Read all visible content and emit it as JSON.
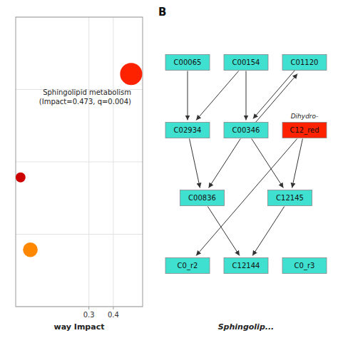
{
  "chart_data": [
    {
      "type": "scatter",
      "x": [
        0.473,
        0.02,
        0.06
      ],
      "y": [
        2.55,
        1.55,
        0.85
      ],
      "sizes": [
        500,
        100,
        220
      ],
      "colors": [
        "#FF2200",
        "#CC0000",
        "#FF8800"
      ],
      "xlim": [
        0.0,
        0.52
      ],
      "ylim": [
        0.3,
        3.1
      ],
      "xticks": [
        0.3,
        0.4
      ],
      "yticks": [
        0.3,
        1.0,
        1.7,
        2.4,
        3.1
      ],
      "xlabel": "way Impact",
      "grid": true,
      "tick_labels": "x",
      "annotations": [
        {
          "text": "Sphingolipid metabolism\n(Impact=0.473, q=0.004)",
          "x": 0.473,
          "y": 2.55
        }
      ]
    },
    {
      "type": "network",
      "title": "B",
      "xlabel": "Sphingolip...",
      "nodes": [
        {
          "name": "C00065",
          "color": "#40E0D0"
        },
        {
          "name": "C00154",
          "color": "#40E0D0"
        },
        {
          "name": "C01120",
          "color": "#40E0D0"
        },
        {
          "name": "C02934",
          "color": "#40E0D0"
        },
        {
          "name": "C00346",
          "color": "#40E0D0"
        },
        {
          "name": "C12_red",
          "color": "#FF2200"
        },
        {
          "name": "C00836",
          "color": "#40E0D0"
        },
        {
          "name": "C12145",
          "color": "#40E0D0"
        },
        {
          "name": "C0_r2",
          "color": "#40E0D0"
        },
        {
          "name": "C12144",
          "color": "#40E0D0"
        },
        {
          "name": "C0_r3",
          "color": "#40E0D0"
        }
      ],
      "edges": [
        [
          "C00065",
          "C02934"
        ],
        [
          "C00154",
          "C02934"
        ],
        [
          "C00154",
          "C00346"
        ],
        [
          "C01120",
          "C00346"
        ],
        [
          "C00346",
          "C01120"
        ],
        [
          "C02934",
          "C00836"
        ],
        [
          "C00346",
          "C00836"
        ],
        [
          "C00346",
          "C12145"
        ],
        [
          "C12_red",
          "C12145"
        ],
        [
          "C12_red",
          "C0_r2"
        ],
        [
          "C00836",
          "C12144"
        ],
        [
          "C12145",
          "C12144"
        ]
      ],
      "annotations": [
        {
          "text": "Dihydro-",
          "node": "C12_red"
        }
      ]
    }
  ]
}
